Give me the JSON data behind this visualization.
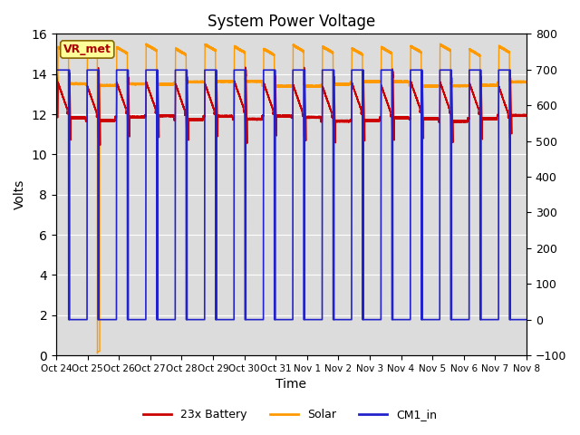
{
  "title": "System Power Voltage",
  "xlabel": "Time",
  "ylabel_left": "Volts",
  "ylim_left": [
    0,
    16
  ],
  "ylim_right": [
    -100,
    800
  ],
  "yticks_left": [
    0,
    2,
    4,
    6,
    8,
    10,
    12,
    14,
    16
  ],
  "yticks_right": [
    -100,
    0,
    100,
    200,
    300,
    400,
    500,
    600,
    700,
    800
  ],
  "xtick_labels": [
    "Oct 24",
    "Oct 25",
    "Oct 26",
    "Oct 27",
    "Oct 28",
    "Oct 29",
    "Oct 30",
    "Oct 31",
    "Nov 1",
    "Nov 2",
    "Nov 3",
    "Nov 4",
    "Nov 5",
    "Nov 6",
    "Nov 7",
    "Nov 8"
  ],
  "background_color": "#dcdcdc",
  "grid_color": "#ffffff",
  "annotation_text": "VR_met",
  "annotation_color": "#aa0000",
  "annotation_bg": "#ffff99",
  "colors": {
    "battery": "#cc0000",
    "solar": "#ff9900",
    "cm1": "#2222cc"
  },
  "legend_labels": [
    "23x Battery",
    "Solar",
    "CM1_in"
  ],
  "title_fontsize": 12,
  "axis_fontsize": 10
}
